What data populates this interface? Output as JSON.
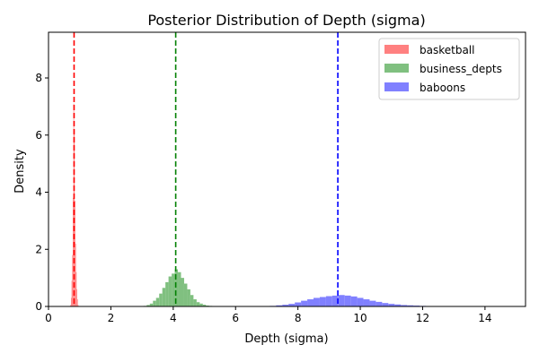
{
  "chart_data": {
    "type": "histogram",
    "title": "Posterior Distribution of Depth (sigma)",
    "xlabel": "Depth (sigma)",
    "ylabel": "Density",
    "xlim": [
      0,
      15.3
    ],
    "ylim": [
      0,
      9.6
    ],
    "xticks": [
      0,
      2,
      4,
      6,
      8,
      10,
      12,
      14
    ],
    "yticks": [
      0,
      2,
      4,
      6,
      8
    ],
    "grid": false,
    "legend_position": "top-right",
    "series": [
      {
        "name": "basketball",
        "color": "#ff8080",
        "mean_line_color": "#ff0000",
        "mean": 0.82,
        "bins": [
          [
            0.7,
            0.05
          ],
          [
            0.72,
            0.3
          ],
          [
            0.74,
            0.9
          ],
          [
            0.76,
            1.8
          ],
          [
            0.78,
            3.8
          ],
          [
            0.8,
            7.1
          ],
          [
            0.82,
            6.2
          ],
          [
            0.84,
            3.7
          ],
          [
            0.86,
            2.2
          ],
          [
            0.88,
            1.2
          ],
          [
            0.9,
            0.6
          ],
          [
            0.92,
            0.25
          ],
          [
            0.94,
            0.05
          ]
        ],
        "bin_width": 0.02
      },
      {
        "name": "business_depts",
        "color": "#80c080",
        "mean_line_color": "#008000",
        "mean": 4.08,
        "bins": [
          [
            3.05,
            0.02
          ],
          [
            3.15,
            0.05
          ],
          [
            3.25,
            0.1
          ],
          [
            3.35,
            0.2
          ],
          [
            3.45,
            0.3
          ],
          [
            3.55,
            0.45
          ],
          [
            3.65,
            0.65
          ],
          [
            3.75,
            0.85
          ],
          [
            3.85,
            1.05
          ],
          [
            3.95,
            1.15
          ],
          [
            4.05,
            1.3
          ],
          [
            4.15,
            1.2
          ],
          [
            4.25,
            1.0
          ],
          [
            4.35,
            0.8
          ],
          [
            4.45,
            0.6
          ],
          [
            4.55,
            0.4
          ],
          [
            4.65,
            0.25
          ],
          [
            4.75,
            0.15
          ],
          [
            4.85,
            0.1
          ],
          [
            4.95,
            0.06
          ],
          [
            5.05,
            0.03
          ],
          [
            5.15,
            0.02
          ],
          [
            5.25,
            0.01
          ]
        ],
        "bin_width": 0.1
      },
      {
        "name": "baboons",
        "color": "#8080ff",
        "mean_line_color": "#0000ff",
        "mean": 9.28,
        "bins": [
          [
            6.9,
            0.01
          ],
          [
            7.1,
            0.02
          ],
          [
            7.3,
            0.04
          ],
          [
            7.5,
            0.06
          ],
          [
            7.7,
            0.09
          ],
          [
            7.9,
            0.14
          ],
          [
            8.1,
            0.2
          ],
          [
            8.3,
            0.25
          ],
          [
            8.5,
            0.3
          ],
          [
            8.7,
            0.33
          ],
          [
            8.9,
            0.36
          ],
          [
            9.1,
            0.38
          ],
          [
            9.3,
            0.4
          ],
          [
            9.5,
            0.38
          ],
          [
            9.7,
            0.35
          ],
          [
            9.9,
            0.3
          ],
          [
            10.1,
            0.25
          ],
          [
            10.3,
            0.2
          ],
          [
            10.5,
            0.16
          ],
          [
            10.7,
            0.12
          ],
          [
            10.9,
            0.09
          ],
          [
            11.1,
            0.07
          ],
          [
            11.3,
            0.05
          ],
          [
            11.5,
            0.04
          ],
          [
            11.7,
            0.03
          ],
          [
            11.9,
            0.02
          ],
          [
            12.1,
            0.015
          ],
          [
            12.3,
            0.01
          ]
        ],
        "bin_width": 0.2
      }
    ]
  }
}
